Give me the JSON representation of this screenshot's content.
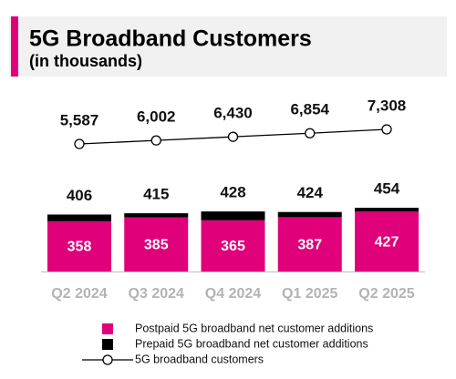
{
  "chart_data": {
    "type": "bar",
    "stacked": true,
    "title": "5G Broadband Customers",
    "subtitle": "(in thousands)",
    "categories": [
      "Q2 2024",
      "Q3 2024",
      "Q4 2024",
      "Q1 2025",
      "Q2 2025"
    ],
    "series": [
      {
        "name": "Postpaid 5G broadband net customer additions",
        "color": "#e0007a",
        "values": [
          358,
          385,
          365,
          387,
          427
        ]
      },
      {
        "name": "Prepaid 5G broadband net customer additions",
        "color": "#000000",
        "values": [
          48,
          30,
          63,
          37,
          27
        ]
      }
    ],
    "totals": [
      406,
      415,
      428,
      424,
      454
    ],
    "line": {
      "name": "5G broadband customers",
      "color": "#000000",
      "values": [
        5587,
        6002,
        6430,
        6854,
        7308
      ],
      "value_labels": [
        "5,587",
        "6,002",
        "6,430",
        "6,854",
        "7,308"
      ]
    }
  }
}
